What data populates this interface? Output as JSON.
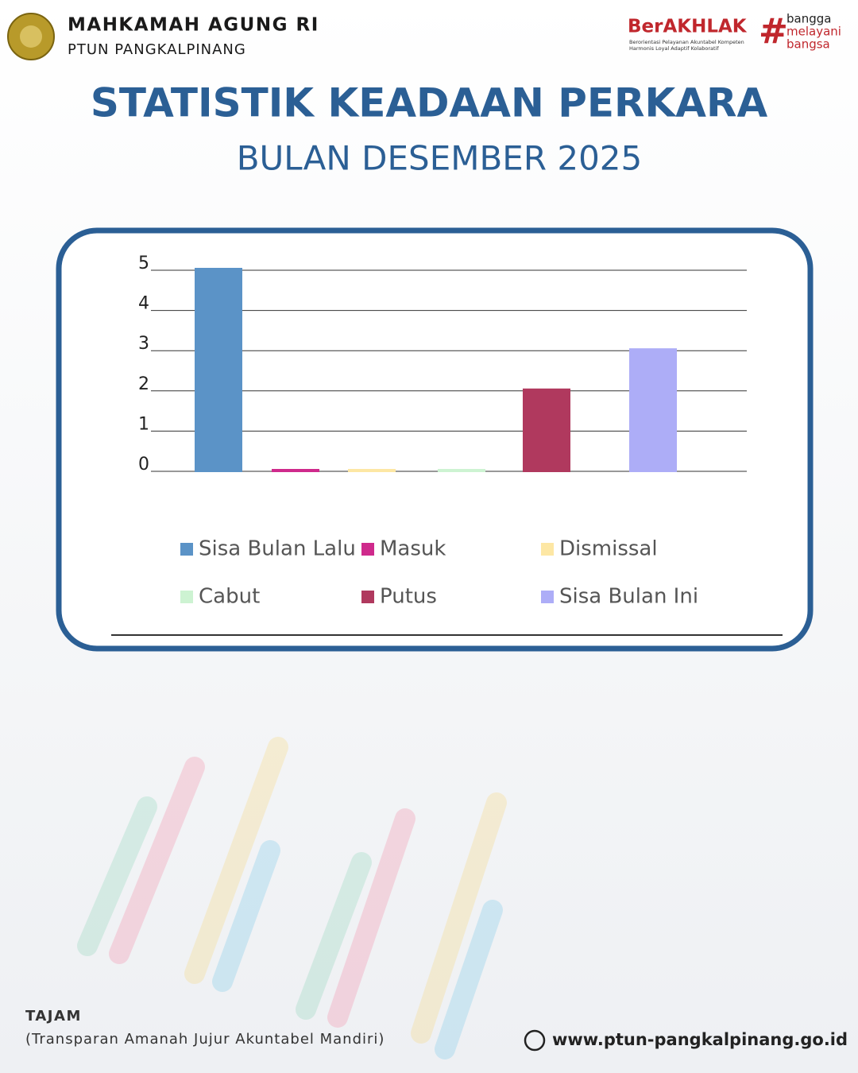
{
  "header": {
    "org": "MAHKAMAH AGUNG RI",
    "unit": "PTUN PANGKALPINANG",
    "brand": "BerAKHLAK",
    "brand_tagline": [
      "Berorientasi Pelayanan Akuntabel Kompeten",
      "Harmonis Loyal Adaptif Kolaboratif"
    ],
    "hashtag": [
      "bangga",
      "melayani",
      "bangsa"
    ]
  },
  "chart_data": {
    "type": "bar",
    "title": "STATISTIK KEADAAN PERKARA",
    "subtitle": "BULAN DESEMBER 2025",
    "categories": [
      null
    ],
    "series": [
      {
        "name": "Sisa Bulan Lalu",
        "color": "#5b93c7",
        "values": [
          5
        ]
      },
      {
        "name": "Masuk",
        "color": "#cf2a8c",
        "values": [
          0
        ]
      },
      {
        "name": "Dismissal",
        "color": "#fde7a4",
        "values": [
          0
        ]
      },
      {
        "name": "Cabut",
        "color": "#cdf3d2",
        "values": [
          0
        ]
      },
      {
        "name": "Putus",
        "color": "#b0395e",
        "values": [
          2
        ]
      },
      {
        "name": "Sisa Bulan Ini",
        "color": "#adadf7",
        "values": [
          3
        ]
      }
    ],
    "ylim": [
      0,
      5
    ],
    "yticks": [
      0,
      1,
      2,
      3,
      4,
      5
    ],
    "grid": true,
    "legend": "bottom"
  },
  "footer": {
    "motto": "TAJAM",
    "motto_full": "(Transparan Amanah Jujur Akuntabel Mandiri)",
    "website": "www.ptun-pangkalpinang.go.id"
  }
}
